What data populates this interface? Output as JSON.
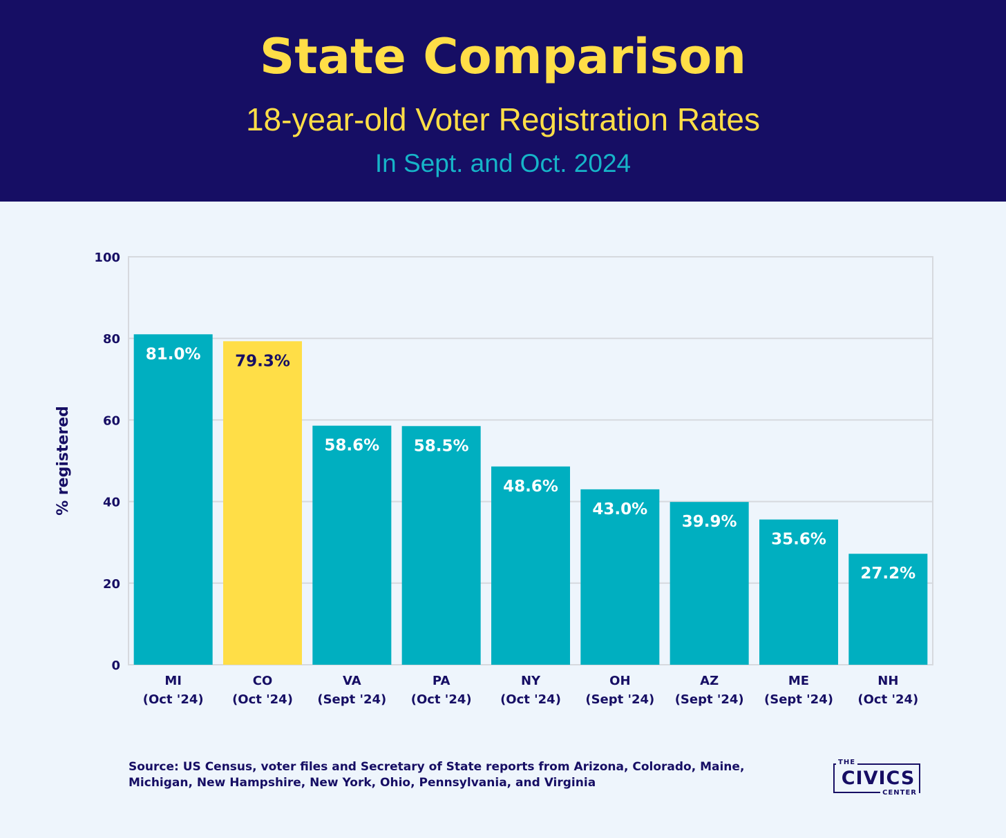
{
  "header": {
    "title": "State Comparison",
    "subtitle": "18-year-old Voter Registration Rates",
    "subtitle2": "In Sept. and Oct. 2024"
  },
  "chart_data": {
    "type": "bar",
    "categories": [
      [
        "MI",
        "(Oct '24)"
      ],
      [
        "CO",
        "(Oct '24)"
      ],
      [
        "VA",
        "(Sept '24)"
      ],
      [
        "PA",
        "(Oct '24)"
      ],
      [
        "NY",
        "(Oct '24)"
      ],
      [
        "OH",
        "(Sept '24)"
      ],
      [
        "AZ",
        "(Sept '24)"
      ],
      [
        "ME",
        "(Sept '24)"
      ],
      [
        "NH",
        "(Oct '24)"
      ]
    ],
    "values": [
      81.0,
      79.3,
      58.6,
      58.5,
      48.6,
      43.0,
      39.9,
      35.6,
      27.2
    ],
    "data_labels": [
      "81.0%",
      "79.3%",
      "58.6%",
      "58.5%",
      "48.6%",
      "43.0%",
      "39.9%",
      "35.6%",
      "27.2%"
    ],
    "highlight_index": 1,
    "ylabel": "% registered",
    "xlabel": "",
    "ylim": [
      0,
      100
    ],
    "yticks": [
      0,
      20,
      40,
      60,
      80,
      100
    ],
    "grid": true,
    "colors": {
      "bar": "#00afc0",
      "highlight": "#ffde47",
      "label_on_bar": "#ffffff",
      "label_on_highlight": "#160e64",
      "text": "#160e64",
      "grid": "#d6d9de"
    }
  },
  "footer": {
    "source": "Source: US Census, voter files and Secretary of State reports from Arizona, Colorado, Maine, Michigan, New Hampshire, New York, Ohio, Pennsylvania, and Virginia"
  },
  "logo": {
    "the": "THE",
    "civics": "CIVICS",
    "center": "CENTER"
  }
}
